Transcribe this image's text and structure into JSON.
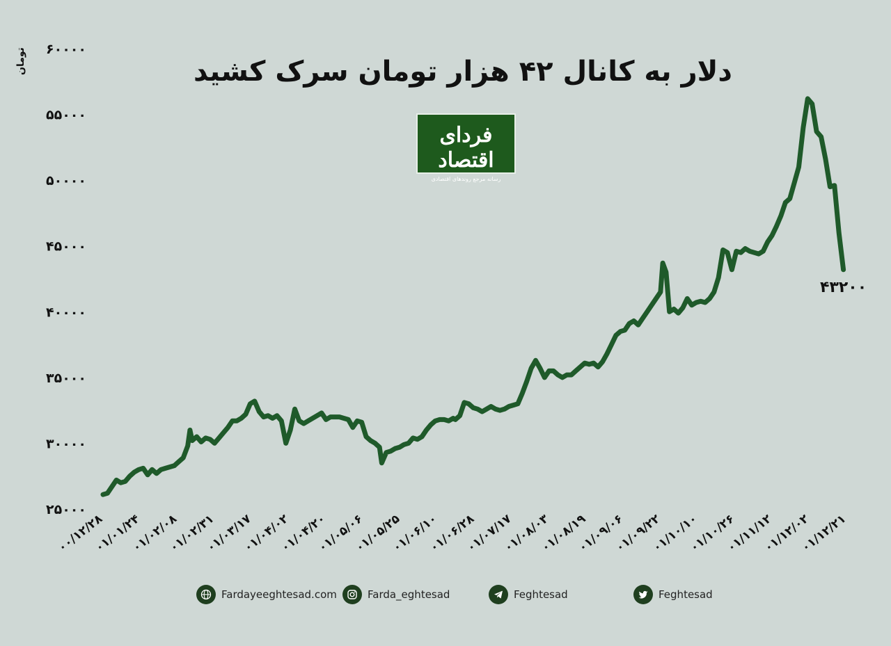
{
  "header": {
    "title": "دلار به کانال ۴۲ هزار تومان سرک کشید",
    "logo_main": "فردای اقتصاد",
    "logo_sub": "رسانه مرجع روندهای اقتصادی"
  },
  "chart_data": {
    "type": "line",
    "title": "دلار به کانال ۴۲ هزار تومان سرک کشید",
    "ylabel": "تومان",
    "xlabel": "",
    "ylim": [
      25000,
      60000
    ],
    "grid": false,
    "color": "#1f5a2a",
    "y_ticks": [
      {
        "value": 25000,
        "label": "۲۵۰۰۰"
      },
      {
        "value": 30000,
        "label": "۳۰۰۰۰"
      },
      {
        "value": 35000,
        "label": "۳۵۰۰۰"
      },
      {
        "value": 40000,
        "label": "۴۰۰۰۰"
      },
      {
        "value": 45000,
        "label": "۴۵۰۰۰"
      },
      {
        "value": 50000,
        "label": "۵۰۰۰۰"
      },
      {
        "value": 55000,
        "label": "۵۵۰۰۰"
      },
      {
        "value": 60000,
        "label": "۶۰۰۰۰"
      }
    ],
    "x_ticks": [
      "۰۰/۱۲/۲۸",
      "۰۱/۰۱/۲۴",
      "۰۱/۰۲/۰۸",
      "۰۱/۰۲/۳۱",
      "۰۱/۰۳/۱۷",
      "۰۱/۰۴/۰۲",
      "۰۱/۰۴/۲۰",
      "۰۱/۰۵/۰۶",
      "۰۱/۰۵/۲۵",
      "۰۱/۰۶/۱۰",
      "۰۱/۰۶/۲۸",
      "۰۱/۰۷/۱۷",
      "۰۱/۰۸/۰۳",
      "۰۱/۰۸/۱۹",
      "۰۱/۰۹/۰۶",
      "۰۱/۰۹/۲۲",
      "۰۱/۱۰/۱۰",
      "۰۱/۱۰/۲۶",
      "۰۱/۱۱/۱۲",
      "۰۱/۱۲/۰۲",
      "۰۱/۱۲/۲۱"
    ],
    "series": [
      {
        "values": [
          [
            0.0,
            26100
          ],
          [
            0.2,
            26200
          ],
          [
            0.4,
            26700
          ],
          [
            0.6,
            27200
          ],
          [
            0.8,
            27000
          ],
          [
            1.0,
            27100
          ],
          [
            1.2,
            27500
          ],
          [
            1.4,
            27800
          ],
          [
            1.6,
            28000
          ],
          [
            1.8,
            28100
          ],
          [
            2.0,
            27600
          ],
          [
            2.2,
            28000
          ],
          [
            2.4,
            27700
          ],
          [
            2.6,
            28000
          ],
          [
            2.8,
            28100
          ],
          [
            3.0,
            28200
          ],
          [
            3.2,
            28300
          ],
          [
            3.4,
            28600
          ],
          [
            3.6,
            28900
          ],
          [
            3.8,
            29800
          ],
          [
            3.9,
            31000
          ],
          [
            4.0,
            30200
          ],
          [
            4.2,
            30500
          ],
          [
            4.4,
            30100
          ],
          [
            4.6,
            30400
          ],
          [
            4.8,
            30300
          ],
          [
            5.0,
            30000
          ],
          [
            5.2,
            30400
          ],
          [
            5.4,
            30800
          ],
          [
            5.6,
            31200
          ],
          [
            5.8,
            31700
          ],
          [
            6.0,
            31700
          ],
          [
            6.2,
            31900
          ],
          [
            6.4,
            32200
          ],
          [
            6.6,
            33000
          ],
          [
            6.8,
            33200
          ],
          [
            7.0,
            32400
          ],
          [
            7.2,
            32000
          ],
          [
            7.4,
            32100
          ],
          [
            7.6,
            31900
          ],
          [
            7.8,
            32100
          ],
          [
            8.0,
            31700
          ],
          [
            8.2,
            30000
          ],
          [
            8.4,
            31000
          ],
          [
            8.6,
            32600
          ],
          [
            8.8,
            31700
          ],
          [
            9.0,
            31500
          ],
          [
            9.2,
            31700
          ],
          [
            9.4,
            31900
          ],
          [
            9.6,
            32100
          ],
          [
            9.8,
            32300
          ],
          [
            10.0,
            31800
          ],
          [
            10.2,
            32000
          ],
          [
            10.4,
            32000
          ],
          [
            10.6,
            32000
          ],
          [
            10.8,
            31900
          ],
          [
            11.0,
            31800
          ],
          [
            11.2,
            31200
          ],
          [
            11.4,
            31700
          ],
          [
            11.6,
            31600
          ],
          [
            11.8,
            30500
          ],
          [
            12.0,
            30200
          ],
          [
            12.2,
            30000
          ],
          [
            12.4,
            29700
          ],
          [
            12.5,
            28500
          ],
          [
            12.7,
            29300
          ],
          [
            12.9,
            29400
          ],
          [
            13.1,
            29600
          ],
          [
            13.3,
            29700
          ],
          [
            13.5,
            29900
          ],
          [
            13.7,
            30000
          ],
          [
            13.9,
            30400
          ],
          [
            14.1,
            30300
          ],
          [
            14.3,
            30500
          ],
          [
            14.5,
            31000
          ],
          [
            14.7,
            31400
          ],
          [
            14.9,
            31700
          ],
          [
            15.1,
            31800
          ],
          [
            15.3,
            31800
          ],
          [
            15.5,
            31700
          ],
          [
            15.7,
            31900
          ],
          [
            15.8,
            31800
          ],
          [
            16.0,
            32100
          ],
          [
            16.2,
            33100
          ],
          [
            16.4,
            33000
          ],
          [
            16.6,
            32700
          ],
          [
            16.8,
            32600
          ],
          [
            17.0,
            32400
          ],
          [
            17.2,
            32600
          ],
          [
            17.4,
            32800
          ],
          [
            17.6,
            32600
          ],
          [
            17.8,
            32500
          ],
          [
            18.0,
            32600
          ],
          [
            18.2,
            32800
          ],
          [
            18.4,
            32900
          ],
          [
            18.6,
            33000
          ],
          [
            18.8,
            33800
          ],
          [
            19.0,
            34700
          ],
          [
            19.2,
            35700
          ],
          [
            19.4,
            36300
          ],
          [
            19.6,
            35700
          ],
          [
            19.8,
            35000
          ],
          [
            20.0,
            35500
          ],
          [
            20.2,
            35500
          ],
          [
            20.4,
            35200
          ],
          [
            20.6,
            35000
          ],
          [
            20.8,
            35200
          ],
          [
            21.0,
            35200
          ],
          [
            21.2,
            35500
          ],
          [
            21.4,
            35800
          ],
          [
            21.6,
            36100
          ],
          [
            21.8,
            36000
          ],
          [
            22.0,
            36100
          ],
          [
            22.2,
            35800
          ],
          [
            22.4,
            36200
          ],
          [
            22.6,
            36800
          ],
          [
            22.8,
            37500
          ],
          [
            23.0,
            38200
          ],
          [
            23.2,
            38500
          ],
          [
            23.4,
            38600
          ],
          [
            23.6,
            39100
          ],
          [
            23.8,
            39300
          ],
          [
            24.0,
            39000
          ],
          [
            24.2,
            39500
          ],
          [
            24.4,
            40000
          ],
          [
            24.6,
            40500
          ],
          [
            24.8,
            41000
          ],
          [
            25.0,
            41500
          ],
          [
            25.1,
            43700
          ],
          [
            25.25,
            43000
          ],
          [
            25.4,
            40000
          ],
          [
            25.6,
            40200
          ],
          [
            25.8,
            39900
          ],
          [
            26.0,
            40300
          ],
          [
            26.2,
            41000
          ],
          [
            26.4,
            40500
          ],
          [
            26.6,
            40700
          ],
          [
            26.8,
            40800
          ],
          [
            27.0,
            40700
          ],
          [
            27.2,
            41000
          ],
          [
            27.4,
            41500
          ],
          [
            27.6,
            42600
          ],
          [
            27.8,
            44700
          ],
          [
            28.0,
            44500
          ],
          [
            28.2,
            43200
          ],
          [
            28.4,
            44600
          ],
          [
            28.6,
            44500
          ],
          [
            28.8,
            44800
          ],
          [
            29.0,
            44600
          ],
          [
            29.2,
            44500
          ],
          [
            29.4,
            44400
          ],
          [
            29.6,
            44600
          ],
          [
            29.8,
            45300
          ],
          [
            30.0,
            45800
          ],
          [
            30.2,
            46500
          ],
          [
            30.4,
            47300
          ],
          [
            30.6,
            48300
          ],
          [
            30.8,
            48600
          ],
          [
            31.0,
            49800
          ],
          [
            31.2,
            51000
          ],
          [
            31.4,
            54000
          ],
          [
            31.6,
            56200
          ],
          [
            31.8,
            55800
          ],
          [
            32.0,
            53700
          ],
          [
            32.2,
            53300
          ],
          [
            32.4,
            51600
          ],
          [
            32.6,
            49500
          ],
          [
            32.8,
            49600
          ],
          [
            33.0,
            46000
          ],
          [
            33.2,
            43200
          ]
        ]
      }
    ],
    "x_max": 33.4,
    "end_label": "۴۳۲۰۰"
  },
  "footer": {
    "website": "Fardayeeghtesad.com",
    "instagram": "Farda_eghtesad",
    "telegram": "Feghtesad",
    "twitter": "Feghtesad"
  }
}
